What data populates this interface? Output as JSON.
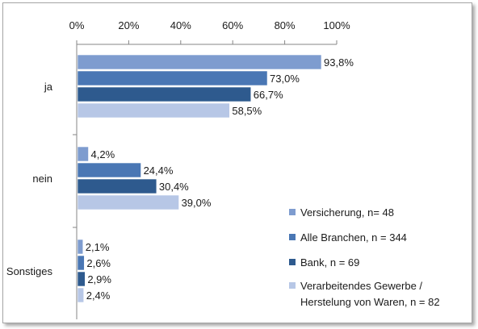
{
  "chart_data": {
    "type": "bar",
    "orientation": "horizontal",
    "categories": [
      "ja",
      "nein",
      "Sonstiges"
    ],
    "xlim": [
      0,
      100
    ],
    "xticks": [
      "0%",
      "20%",
      "40%",
      "60%",
      "80%",
      "100%"
    ],
    "grid": false,
    "legend_position": "bottom-right",
    "series": [
      {
        "name": "Versicherung, n= 48",
        "values": [
          93.8,
          4.2,
          2.1
        ],
        "labels": [
          "93,8%",
          "4,2%",
          "2,1%"
        ],
        "color": "#7e9ccf"
      },
      {
        "name": "Alle Branchen, n = 344",
        "values": [
          73.0,
          24.4,
          2.6
        ],
        "labels": [
          "73,0%",
          "24,4%",
          "2,6%"
        ],
        "color": "#4a77b4"
      },
      {
        "name": "Bank, n = 69",
        "values": [
          66.7,
          30.4,
          2.9
        ],
        "labels": [
          "66,7%",
          "30,4%",
          "2,9%"
        ],
        "color": "#2e5a8e"
      },
      {
        "name": "Verarbeitendes Gewerbe / Herstelung von Waren, n = 82",
        "legend_lines": [
          "Verarbeitendes Gewerbe /",
          "Herstelung von Waren, n = 82"
        ],
        "values": [
          58.5,
          39.0,
          2.4
        ],
        "labels": [
          "58,5%",
          "39,0%",
          "2,4%"
        ],
        "color": "#b7c7e6"
      }
    ]
  }
}
